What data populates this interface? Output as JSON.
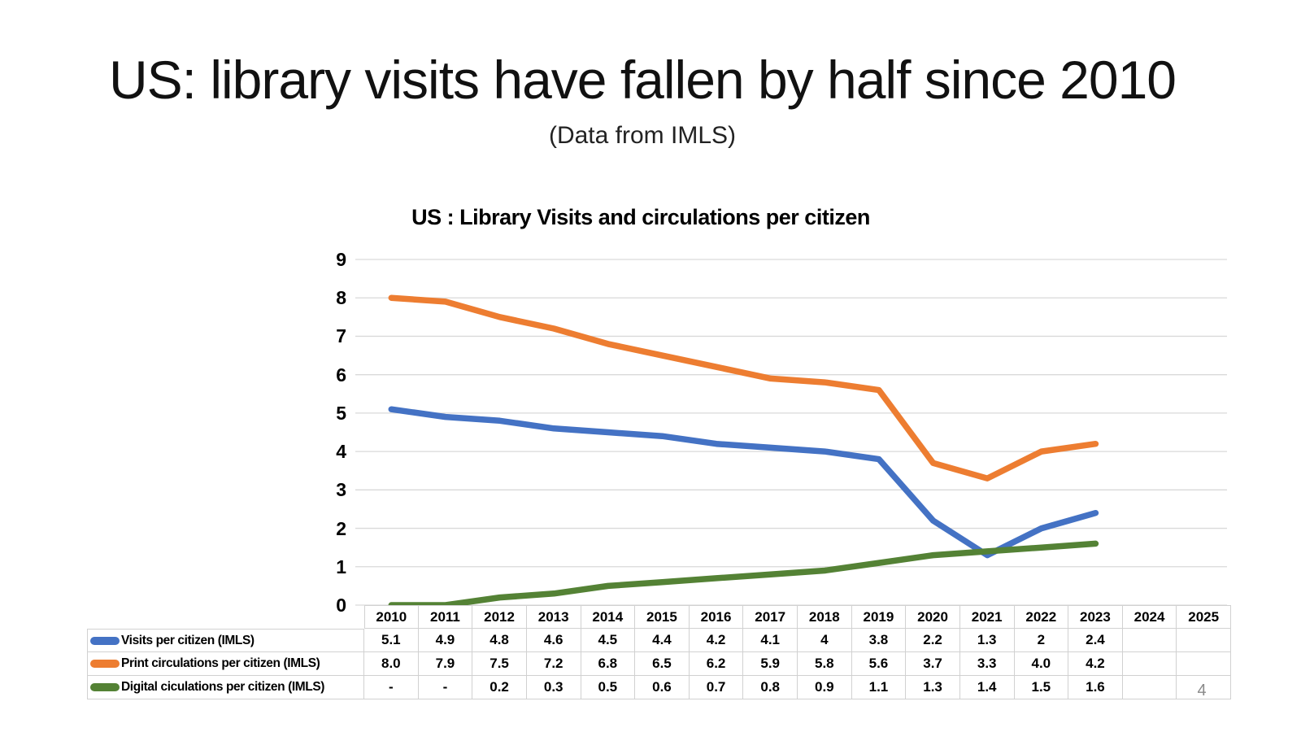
{
  "slide": {
    "title": "US: library visits have fallen by half since 2010",
    "subtitle": "(Data from IMLS)",
    "page_number": "4"
  },
  "chart_data": {
    "type": "line",
    "title": "US : Library Visits and circulations per citizen",
    "categories": [
      "2010",
      "2011",
      "2012",
      "2013",
      "2014",
      "2015",
      "2016",
      "2017",
      "2018",
      "2019",
      "2020",
      "2021",
      "2022",
      "2023",
      "2024",
      "2025"
    ],
    "xlabel": "",
    "ylabel": "",
    "ylim": [
      0,
      9
    ],
    "y_ticks": [
      0,
      1,
      2,
      3,
      4,
      5,
      6,
      7,
      8,
      9
    ],
    "grid": "horizontal-only",
    "gridline_color": "#d9d9d9",
    "legend_position": "table-left",
    "series": [
      {
        "name": "Visits per citizen (IMLS)",
        "key": "visits",
        "color": "#4472C4",
        "values": [
          5.1,
          4.9,
          4.8,
          4.6,
          4.5,
          4.4,
          4.2,
          4.1,
          4,
          3.8,
          2.2,
          1.3,
          2,
          2.4
        ],
        "table_values": [
          "5.1",
          "4.9",
          "4.8",
          "4.6",
          "4.5",
          "4.4",
          "4.2",
          "4.1",
          "4",
          "3.8",
          "2.2",
          "1.3",
          "2",
          "2.4",
          "",
          ""
        ]
      },
      {
        "name": "Print circulations per citizen (IMLS)",
        "key": "print-circulations",
        "color": "#ED7D31",
        "values": [
          8.0,
          7.9,
          7.5,
          7.2,
          6.8,
          6.5,
          6.2,
          5.9,
          5.8,
          5.6,
          3.7,
          3.3,
          4.0,
          4.2
        ],
        "table_values": [
          "8.0",
          "7.9",
          "7.5",
          "7.2",
          "6.8",
          "6.5",
          "6.2",
          "5.9",
          "5.8",
          "5.6",
          "3.7",
          "3.3",
          "4.0",
          "4.2",
          "",
          ""
        ]
      },
      {
        "name": "Digital ciculations per citizen (IMLS)",
        "key": "digital-circulations",
        "color": "#548235",
        "values": [
          0,
          0,
          0.2,
          0.3,
          0.5,
          0.6,
          0.7,
          0.8,
          0.9,
          1.1,
          1.3,
          1.4,
          1.5,
          1.6
        ],
        "table_values": [
          "-",
          "-",
          "0.2",
          "0.3",
          "0.5",
          "0.6",
          "0.7",
          "0.8",
          "0.9",
          "1.1",
          "1.3",
          "1.4",
          "1.5",
          "1.6",
          "",
          ""
        ]
      }
    ]
  }
}
